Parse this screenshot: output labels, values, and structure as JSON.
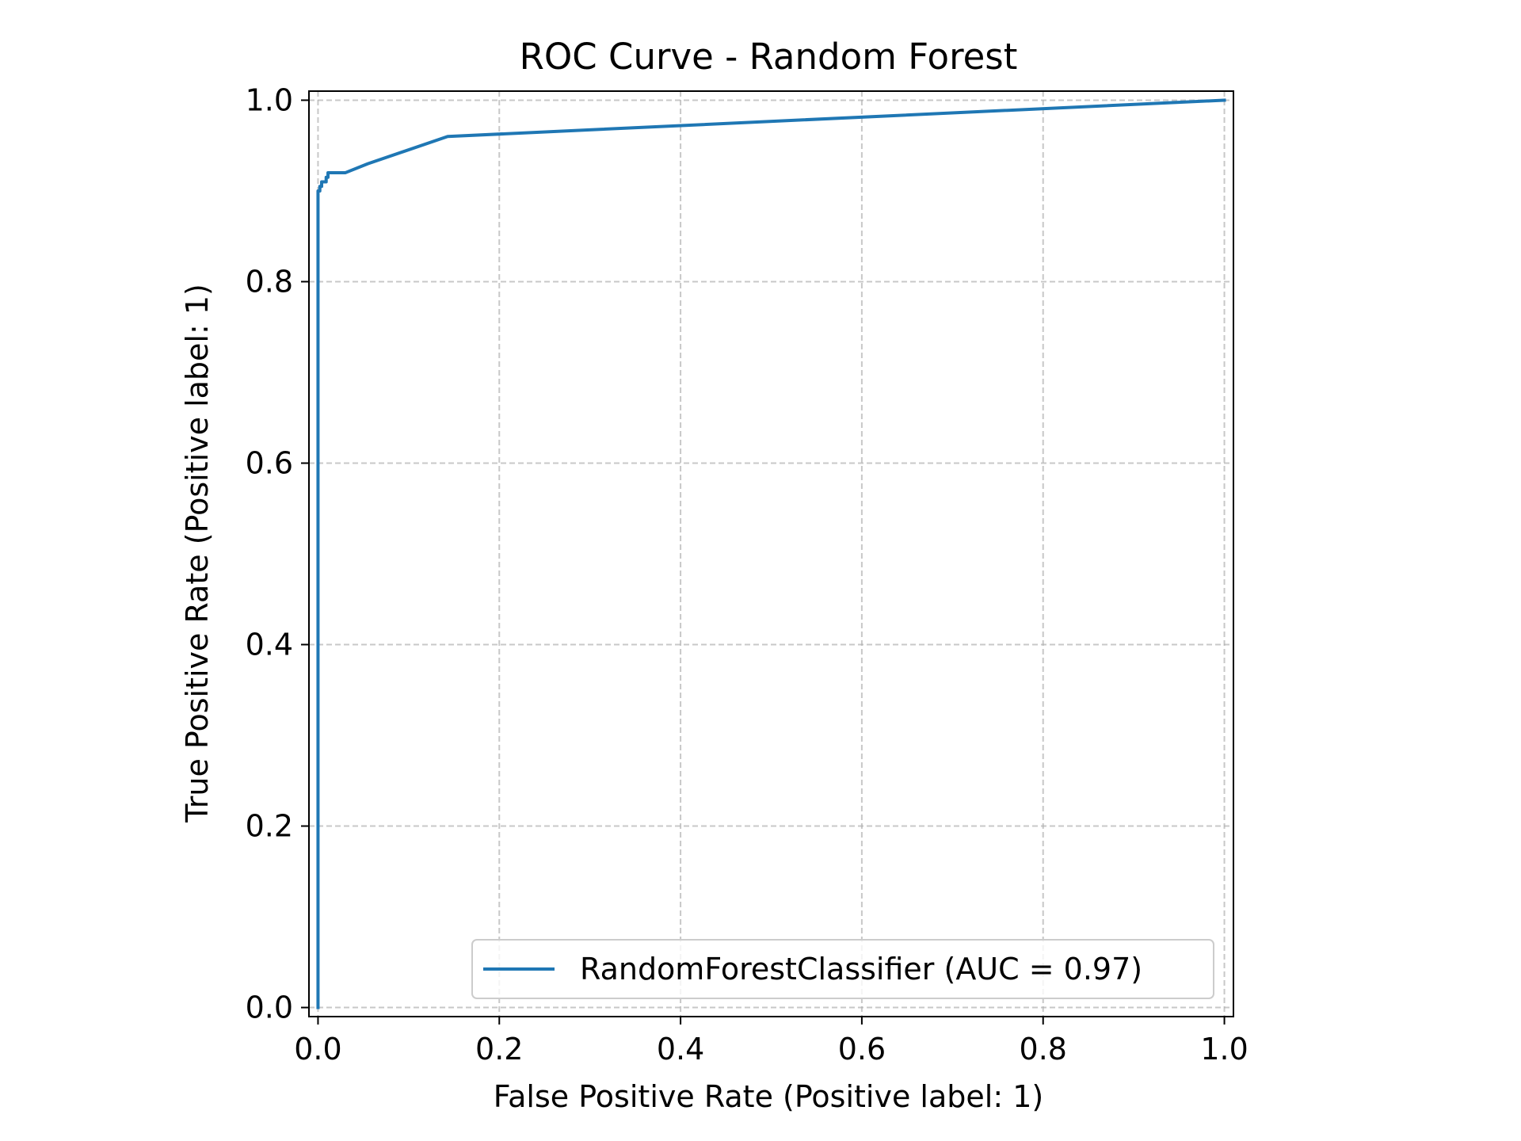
{
  "chart_data": {
    "type": "line",
    "title": "ROC Curve - Random Forest",
    "xlabel": "False Positive Rate (Positive label: 1)",
    "ylabel": "True Positive Rate (Positive label: 1)",
    "xlim": [
      -0.01,
      1.01
    ],
    "ylim": [
      -0.01,
      1.01
    ],
    "xticks": [
      0.0,
      0.2,
      0.4,
      0.6,
      0.8,
      1.0
    ],
    "xtick_labels": [
      "0.0",
      "0.2",
      "0.4",
      "0.6",
      "0.8",
      "1.0"
    ],
    "yticks": [
      0.0,
      0.2,
      0.4,
      0.6,
      0.8,
      1.0
    ],
    "ytick_labels": [
      "0.0",
      "0.2",
      "0.4",
      "0.6",
      "0.8",
      "1.0"
    ],
    "grid": true,
    "grid_style": "dashed",
    "legend_placement": "lower-right",
    "series": [
      {
        "name": "RandomForestClassifier (AUC = 0.97)",
        "color": "#1f77b4",
        "x": [
          0.0,
          0.0,
          0.0,
          0.002,
          0.002,
          0.004,
          0.004,
          0.009,
          0.009,
          0.011,
          0.011,
          0.03,
          0.055,
          0.143,
          1.0
        ],
        "y": [
          0.0,
          0.7,
          0.9,
          0.9,
          0.905,
          0.905,
          0.91,
          0.91,
          0.915,
          0.915,
          0.92,
          0.92,
          0.93,
          0.96,
          1.0
        ]
      }
    ]
  }
}
